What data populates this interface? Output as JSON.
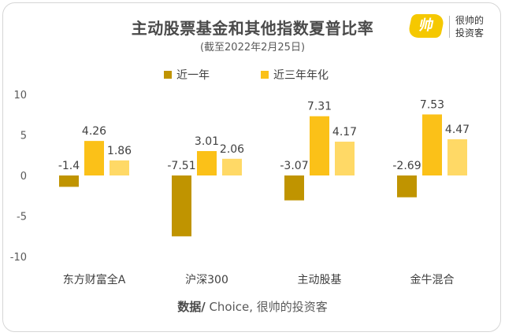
{
  "header": {
    "title": "主动股票基金和其他指数夏普比率",
    "subtitle": "(截至2022年2月25日)"
  },
  "logo": {
    "mark": "帅",
    "line1": "很帅的",
    "line2": "投资客"
  },
  "footer": {
    "source_label": "数据/",
    "source_text": " Choice, 很帅的投资客"
  },
  "chart_data": {
    "type": "bar",
    "title": "主动股票基金和其他指数夏普比率",
    "subtitle": "(截至2022年2月25日)",
    "categories": [
      "东方财富全A",
      "沪深300",
      "主动股基",
      "金牛混合"
    ],
    "series": [
      {
        "name": "近一年",
        "values": [
          -1.4,
          -7.51,
          -3.07,
          -2.69
        ],
        "color": "#c09400"
      },
      {
        "name": "近三年年化",
        "values": [
          4.26,
          3.01,
          7.31,
          7.53
        ],
        "color": "#fbc118"
      },
      {
        "values": [
          1.86,
          2.06,
          4.17,
          4.47
        ],
        "color": "#ffd966"
      }
    ],
    "ylim": [
      -10,
      10
    ],
    "yticks": [
      10,
      5,
      0,
      -5,
      -10
    ],
    "grid": false,
    "legend": "top-center",
    "xlabel": "",
    "ylabel": ""
  }
}
